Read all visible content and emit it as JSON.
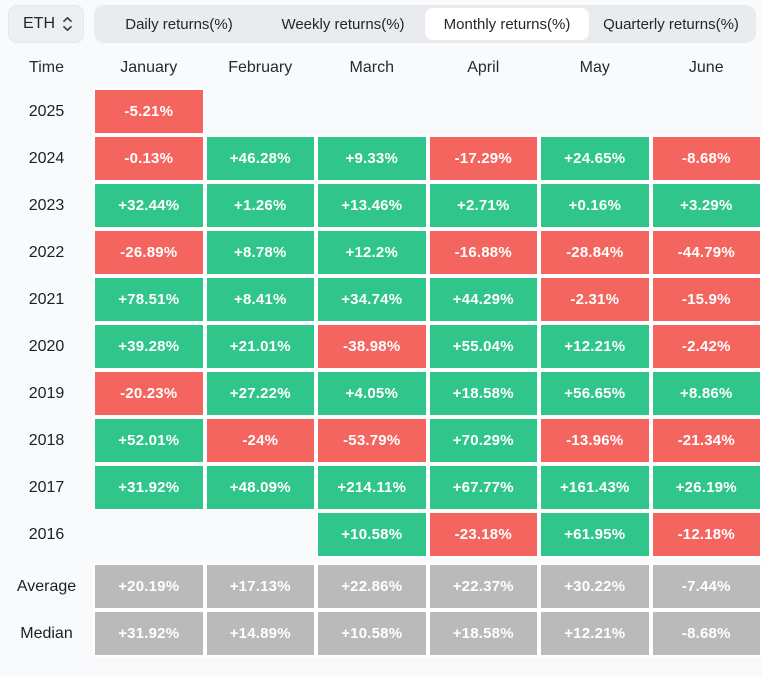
{
  "controls": {
    "symbol_select": {
      "value": "ETH"
    },
    "tabs": [
      {
        "label": "Daily returns(%)",
        "selected": false
      },
      {
        "label": "Weekly returns(%)",
        "selected": false
      },
      {
        "label": "Monthly returns(%)",
        "selected": true
      },
      {
        "label": "Quarterly returns(%)",
        "selected": false
      }
    ]
  },
  "table": {
    "columns": [
      "Time",
      "January",
      "February",
      "March",
      "April",
      "May",
      "June"
    ],
    "rows": [
      {
        "label": "2025",
        "type": "data",
        "cells": [
          "-5.21%",
          "",
          "",
          "",
          "",
          ""
        ]
      },
      {
        "label": "2024",
        "type": "data",
        "cells": [
          "-0.13%",
          "+46.28%",
          "+9.33%",
          "-17.29%",
          "+24.65%",
          "-8.68%"
        ]
      },
      {
        "label": "2023",
        "type": "data",
        "cells": [
          "+32.44%",
          "+1.26%",
          "+13.46%",
          "+2.71%",
          "+0.16%",
          "+3.29%"
        ]
      },
      {
        "label": "2022",
        "type": "data",
        "cells": [
          "-26.89%",
          "+8.78%",
          "+12.2%",
          "-16.88%",
          "-28.84%",
          "-44.79%"
        ]
      },
      {
        "label": "2021",
        "type": "data",
        "cells": [
          "+78.51%",
          "+8.41%",
          "+34.74%",
          "+44.29%",
          "-2.31%",
          "-15.9%"
        ]
      },
      {
        "label": "2020",
        "type": "data",
        "cells": [
          "+39.28%",
          "+21.01%",
          "-38.98%",
          "+55.04%",
          "+12.21%",
          "-2.42%"
        ]
      },
      {
        "label": "2019",
        "type": "data",
        "cells": [
          "-20.23%",
          "+27.22%",
          "+4.05%",
          "+18.58%",
          "+56.65%",
          "+8.86%"
        ]
      },
      {
        "label": "2018",
        "type": "data",
        "cells": [
          "+52.01%",
          "-24%",
          "-53.79%",
          "+70.29%",
          "-13.96%",
          "-21.34%"
        ]
      },
      {
        "label": "2017",
        "type": "data",
        "cells": [
          "+31.92%",
          "+48.09%",
          "+214.11%",
          "+67.77%",
          "+161.43%",
          "+26.19%"
        ]
      },
      {
        "label": "2016",
        "type": "data",
        "cells": [
          "",
          "",
          "+10.58%",
          "-23.18%",
          "+61.95%",
          "-12.18%"
        ]
      },
      {
        "label": "Average",
        "type": "summary",
        "cells": [
          "+20.19%",
          "+17.13%",
          "+22.86%",
          "+22.37%",
          "+30.22%",
          "-7.44%"
        ]
      },
      {
        "label": "Median",
        "type": "summary",
        "cells": [
          "+31.92%",
          "+14.89%",
          "+10.58%",
          "+18.58%",
          "+12.21%",
          "-8.68%"
        ]
      }
    ]
  },
  "colors": {
    "positive": "#2FC58B",
    "negative": "#F5655F",
    "neutral": "#BABABA"
  }
}
